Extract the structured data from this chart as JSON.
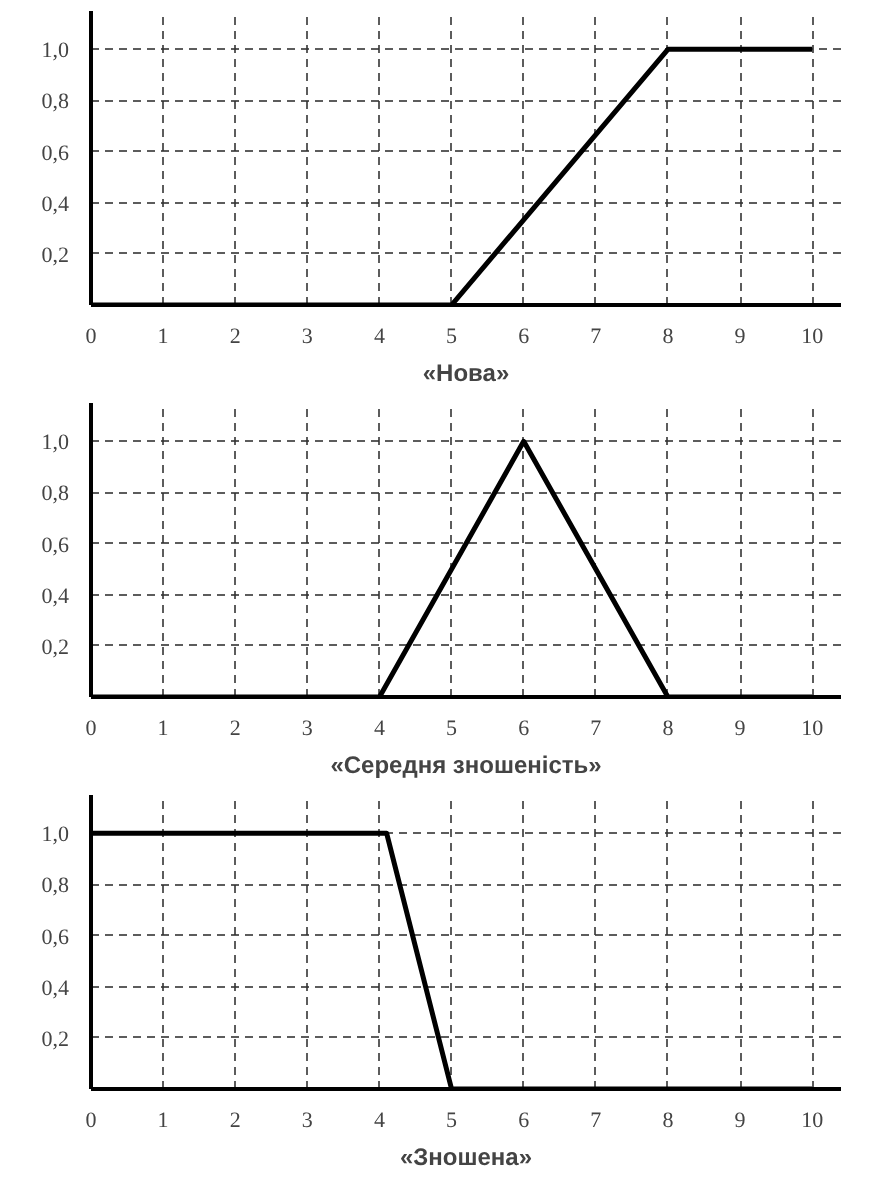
{
  "chart_data": [
    {
      "type": "line",
      "xlabel": "«Нова»",
      "x": [
        0,
        5,
        8,
        10
      ],
      "values": [
        0,
        0,
        1,
        1
      ],
      "color": "#000000",
      "xlim": [
        0,
        10.4
      ],
      "ylim": [
        0,
        1.15
      ],
      "xticks": [
        0,
        1,
        2,
        3,
        4,
        5,
        6,
        7,
        8,
        9,
        10
      ],
      "yticks": [
        {
          "value": 0.2,
          "label": "0,2"
        },
        {
          "value": 0.4,
          "label": "0,4"
        },
        {
          "value": 0.6,
          "label": "0,6"
        },
        {
          "value": 0.8,
          "label": "0,8"
        },
        {
          "value": 1.0,
          "label": "1,0"
        }
      ],
      "grid": true,
      "line_style": "solid"
    },
    {
      "type": "line",
      "xlabel": "«Середня зношеність»",
      "x": [
        0,
        4,
        6,
        8,
        10
      ],
      "values": [
        0,
        0,
        1,
        0,
        0
      ],
      "color": "#000000",
      "xlim": [
        0,
        10.4
      ],
      "ylim": [
        0,
        1.15
      ],
      "xticks": [
        0,
        1,
        2,
        3,
        4,
        5,
        6,
        7,
        8,
        9,
        10
      ],
      "yticks": [
        {
          "value": 0.2,
          "label": "0,2"
        },
        {
          "value": 0.4,
          "label": "0,4"
        },
        {
          "value": 0.6,
          "label": "0,6"
        },
        {
          "value": 0.8,
          "label": "0,8"
        },
        {
          "value": 1.0,
          "label": "1,0"
        }
      ],
      "grid": true,
      "line_style": "solid"
    },
    {
      "type": "line",
      "xlabel": "«Зношена»",
      "x": [
        0,
        4.1,
        5,
        10
      ],
      "values": [
        1,
        1,
        0,
        0
      ],
      "color": "#000000",
      "xlim": [
        0,
        10.4
      ],
      "ylim": [
        0,
        1.15
      ],
      "xticks": [
        0,
        1,
        2,
        3,
        4,
        5,
        6,
        7,
        8,
        9,
        10
      ],
      "yticks": [
        {
          "value": 0.2,
          "label": "0,2"
        },
        {
          "value": 0.4,
          "label": "0,4"
        },
        {
          "value": 0.6,
          "label": "0,6"
        },
        {
          "value": 0.8,
          "label": "0,8"
        },
        {
          "value": 1.0,
          "label": "1,0"
        }
      ],
      "grid": true,
      "line_style": "solid"
    }
  ]
}
